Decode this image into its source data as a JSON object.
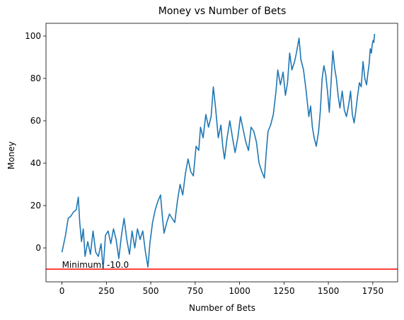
{
  "chart_data": {
    "type": "line",
    "title": "Money vs Number of Bets",
    "xlabel": "Number of Bets",
    "ylabel": "Money",
    "xlim": [
      -90,
      1890
    ],
    "ylim": [
      -16,
      106
    ],
    "xticks": [
      0,
      250,
      500,
      750,
      1000,
      1250,
      1500,
      1750
    ],
    "yticks": [
      0,
      20,
      40,
      60,
      80,
      100
    ],
    "grid": false,
    "series": [
      {
        "color": "#1f77b4",
        "points": [
          [
            0,
            -2
          ],
          [
            20,
            6
          ],
          [
            35,
            14
          ],
          [
            50,
            15
          ],
          [
            65,
            17
          ],
          [
            80,
            18
          ],
          [
            92,
            24
          ],
          [
            100,
            12
          ],
          [
            110,
            3
          ],
          [
            120,
            9
          ],
          [
            130,
            -4
          ],
          [
            145,
            3
          ],
          [
            160,
            -3
          ],
          [
            175,
            8
          ],
          [
            190,
            -2
          ],
          [
            205,
            -4
          ],
          [
            220,
            2
          ],
          [
            232,
            -10
          ],
          [
            245,
            6
          ],
          [
            260,
            8
          ],
          [
            275,
            2
          ],
          [
            290,
            9
          ],
          [
            305,
            4
          ],
          [
            320,
            -5
          ],
          [
            335,
            6
          ],
          [
            350,
            14
          ],
          [
            365,
            4
          ],
          [
            380,
            -3
          ],
          [
            395,
            8
          ],
          [
            410,
            0
          ],
          [
            425,
            9
          ],
          [
            440,
            4
          ],
          [
            455,
            8
          ],
          [
            470,
            -2
          ],
          [
            484,
            -9
          ],
          [
            495,
            2
          ],
          [
            510,
            12
          ],
          [
            525,
            18
          ],
          [
            540,
            22
          ],
          [
            555,
            25
          ],
          [
            565,
            15
          ],
          [
            575,
            7
          ],
          [
            590,
            12
          ],
          [
            605,
            16
          ],
          [
            620,
            14
          ],
          [
            635,
            12
          ],
          [
            650,
            22
          ],
          [
            665,
            30
          ],
          [
            680,
            25
          ],
          [
            695,
            35
          ],
          [
            710,
            42
          ],
          [
            725,
            36
          ],
          [
            740,
            34
          ],
          [
            755,
            48
          ],
          [
            770,
            46
          ],
          [
            780,
            57
          ],
          [
            795,
            52
          ],
          [
            810,
            63
          ],
          [
            825,
            57
          ],
          [
            840,
            62
          ],
          [
            852,
            76
          ],
          [
            865,
            66
          ],
          [
            880,
            52
          ],
          [
            895,
            58
          ],
          [
            905,
            48
          ],
          [
            915,
            42
          ],
          [
            930,
            52
          ],
          [
            945,
            60
          ],
          [
            960,
            52
          ],
          [
            975,
            45
          ],
          [
            990,
            52
          ],
          [
            1005,
            62
          ],
          [
            1020,
            56
          ],
          [
            1035,
            50
          ],
          [
            1050,
            46
          ],
          [
            1065,
            57
          ],
          [
            1080,
            55
          ],
          [
            1095,
            50
          ],
          [
            1110,
            40
          ],
          [
            1125,
            36
          ],
          [
            1140,
            33
          ],
          [
            1150,
            45
          ],
          [
            1160,
            55
          ],
          [
            1175,
            58
          ],
          [
            1190,
            63
          ],
          [
            1205,
            74
          ],
          [
            1215,
            84
          ],
          [
            1230,
            77
          ],
          [
            1245,
            83
          ],
          [
            1258,
            72
          ],
          [
            1270,
            78
          ],
          [
            1282,
            92
          ],
          [
            1295,
            84
          ],
          [
            1310,
            88
          ],
          [
            1320,
            92
          ],
          [
            1335,
            99
          ],
          [
            1345,
            89
          ],
          [
            1360,
            84
          ],
          [
            1375,
            74
          ],
          [
            1390,
            62
          ],
          [
            1400,
            67
          ],
          [
            1410,
            57
          ],
          [
            1420,
            52
          ],
          [
            1432,
            48
          ],
          [
            1445,
            55
          ],
          [
            1455,
            65
          ],
          [
            1465,
            80
          ],
          [
            1475,
            86
          ],
          [
            1485,
            82
          ],
          [
            1495,
            74
          ],
          [
            1505,
            64
          ],
          [
            1515,
            78
          ],
          [
            1525,
            93
          ],
          [
            1535,
            85
          ],
          [
            1545,
            80
          ],
          [
            1555,
            72
          ],
          [
            1565,
            66
          ],
          [
            1578,
            74
          ],
          [
            1590,
            65
          ],
          [
            1602,
            62
          ],
          [
            1615,
            68
          ],
          [
            1625,
            74
          ],
          [
            1635,
            63
          ],
          [
            1645,
            59
          ],
          [
            1655,
            65
          ],
          [
            1665,
            72
          ],
          [
            1675,
            78
          ],
          [
            1685,
            76
          ],
          [
            1695,
            88
          ],
          [
            1705,
            80
          ],
          [
            1715,
            77
          ],
          [
            1722,
            82
          ],
          [
            1730,
            87
          ],
          [
            1736,
            94
          ],
          [
            1742,
            92
          ],
          [
            1747,
            96
          ],
          [
            1752,
            98
          ],
          [
            1756,
            97
          ],
          [
            1760,
            101
          ]
        ]
      }
    ],
    "hline": {
      "y": -10,
      "color": "#ff0000"
    },
    "annotation": {
      "text": "Minimum: -10.0",
      "x": 0,
      "y": -10
    }
  }
}
